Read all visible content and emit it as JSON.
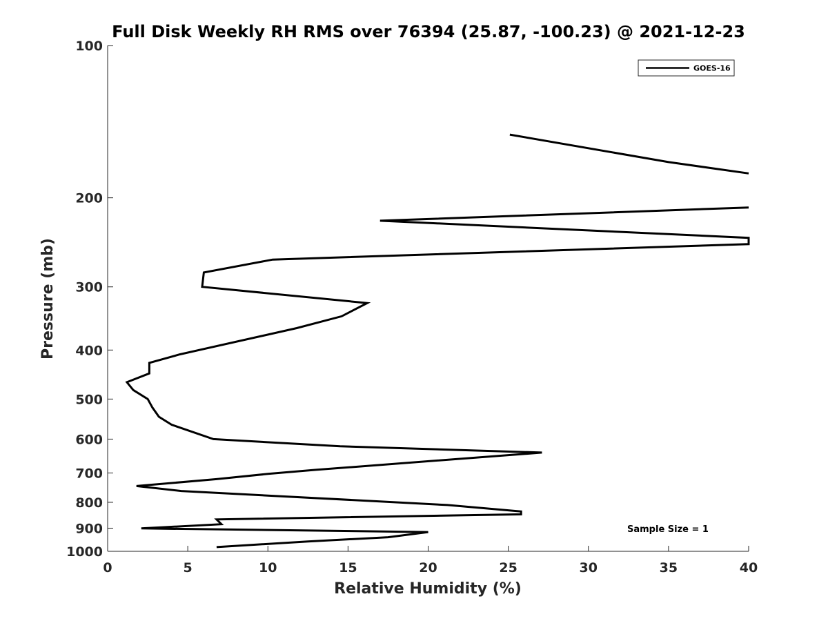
{
  "chart_data": {
    "type": "line",
    "title": "Full Disk Weekly RH RMS over 76394 (25.87, -100.23) @ 2021-12-23",
    "xlabel": "Relative Humidity (%)",
    "ylabel": "Pressure (mb)",
    "xlim": [
      0,
      40
    ],
    "ylim": [
      100,
      1000
    ],
    "yscale": "log",
    "y_reversed": true,
    "grid": false,
    "legend_position": "top-right",
    "x_ticks": [
      "0",
      "5",
      "10",
      "15",
      "20",
      "25",
      "30",
      "35",
      "40"
    ],
    "y_ticks": [
      {
        "value": 100,
        "label": "100"
      },
      {
        "value": 200,
        "label": "200"
      },
      {
        "value": 300,
        "label": "300"
      },
      {
        "value": 400,
        "label": "400"
      },
      {
        "value": 500,
        "label": "500"
      },
      {
        "value": 600,
        "label": "600"
      },
      {
        "value": 700,
        "label": "700"
      },
      {
        "value": 800,
        "label": "800"
      },
      {
        "value": 900,
        "label": "900"
      },
      {
        "value": 1000,
        "label": "1000"
      }
    ],
    "annotation": "Sample Size = 1",
    "series": [
      {
        "name": "GOES-16",
        "color": "#000000",
        "segments": [
          [
            {
              "x": 25.1,
              "p": 150
            },
            {
              "x": 35.0,
              "p": 170
            },
            {
              "x": 40.0,
              "p": 179
            }
          ],
          [
            {
              "x": 40.0,
              "p": 209
            },
            {
              "x": 17.0,
              "p": 222
            },
            {
              "x": 40.0,
              "p": 240
            },
            {
              "x": 40.0,
              "p": 247
            },
            {
              "x": 10.3,
              "p": 265
            },
            {
              "x": 6.0,
              "p": 281
            },
            {
              "x": 5.9,
              "p": 300
            },
            {
              "x": 16.2,
              "p": 323
            },
            {
              "x": 14.6,
              "p": 343
            },
            {
              "x": 11.8,
              "p": 362
            },
            {
              "x": 4.5,
              "p": 408
            },
            {
              "x": 2.6,
              "p": 424
            },
            {
              "x": 2.6,
              "p": 445
            },
            {
              "x": 1.2,
              "p": 463
            },
            {
              "x": 1.6,
              "p": 480
            },
            {
              "x": 2.5,
              "p": 500
            },
            {
              "x": 2.8,
              "p": 520
            },
            {
              "x": 3.2,
              "p": 542
            },
            {
              "x": 4.0,
              "p": 562
            },
            {
              "x": 6.6,
              "p": 600
            },
            {
              "x": 14.5,
              "p": 620
            },
            {
              "x": 27.1,
              "p": 638
            },
            {
              "x": 13.0,
              "p": 690
            },
            {
              "x": 10.0,
              "p": 703
            },
            {
              "x": 6.8,
              "p": 720
            },
            {
              "x": 1.8,
              "p": 743
            },
            {
              "x": 4.6,
              "p": 760
            },
            {
              "x": 21.2,
              "p": 810
            },
            {
              "x": 25.8,
              "p": 834
            },
            {
              "x": 25.8,
              "p": 845
            },
            {
              "x": 6.8,
              "p": 865
            },
            {
              "x": 7.1,
              "p": 884
            },
            {
              "x": 2.1,
              "p": 901
            },
            {
              "x": 20.0,
              "p": 916
            },
            {
              "x": 17.5,
              "p": 938
            },
            {
              "x": 12.5,
              "p": 956
            },
            {
              "x": 6.8,
              "p": 981
            }
          ]
        ]
      }
    ]
  }
}
